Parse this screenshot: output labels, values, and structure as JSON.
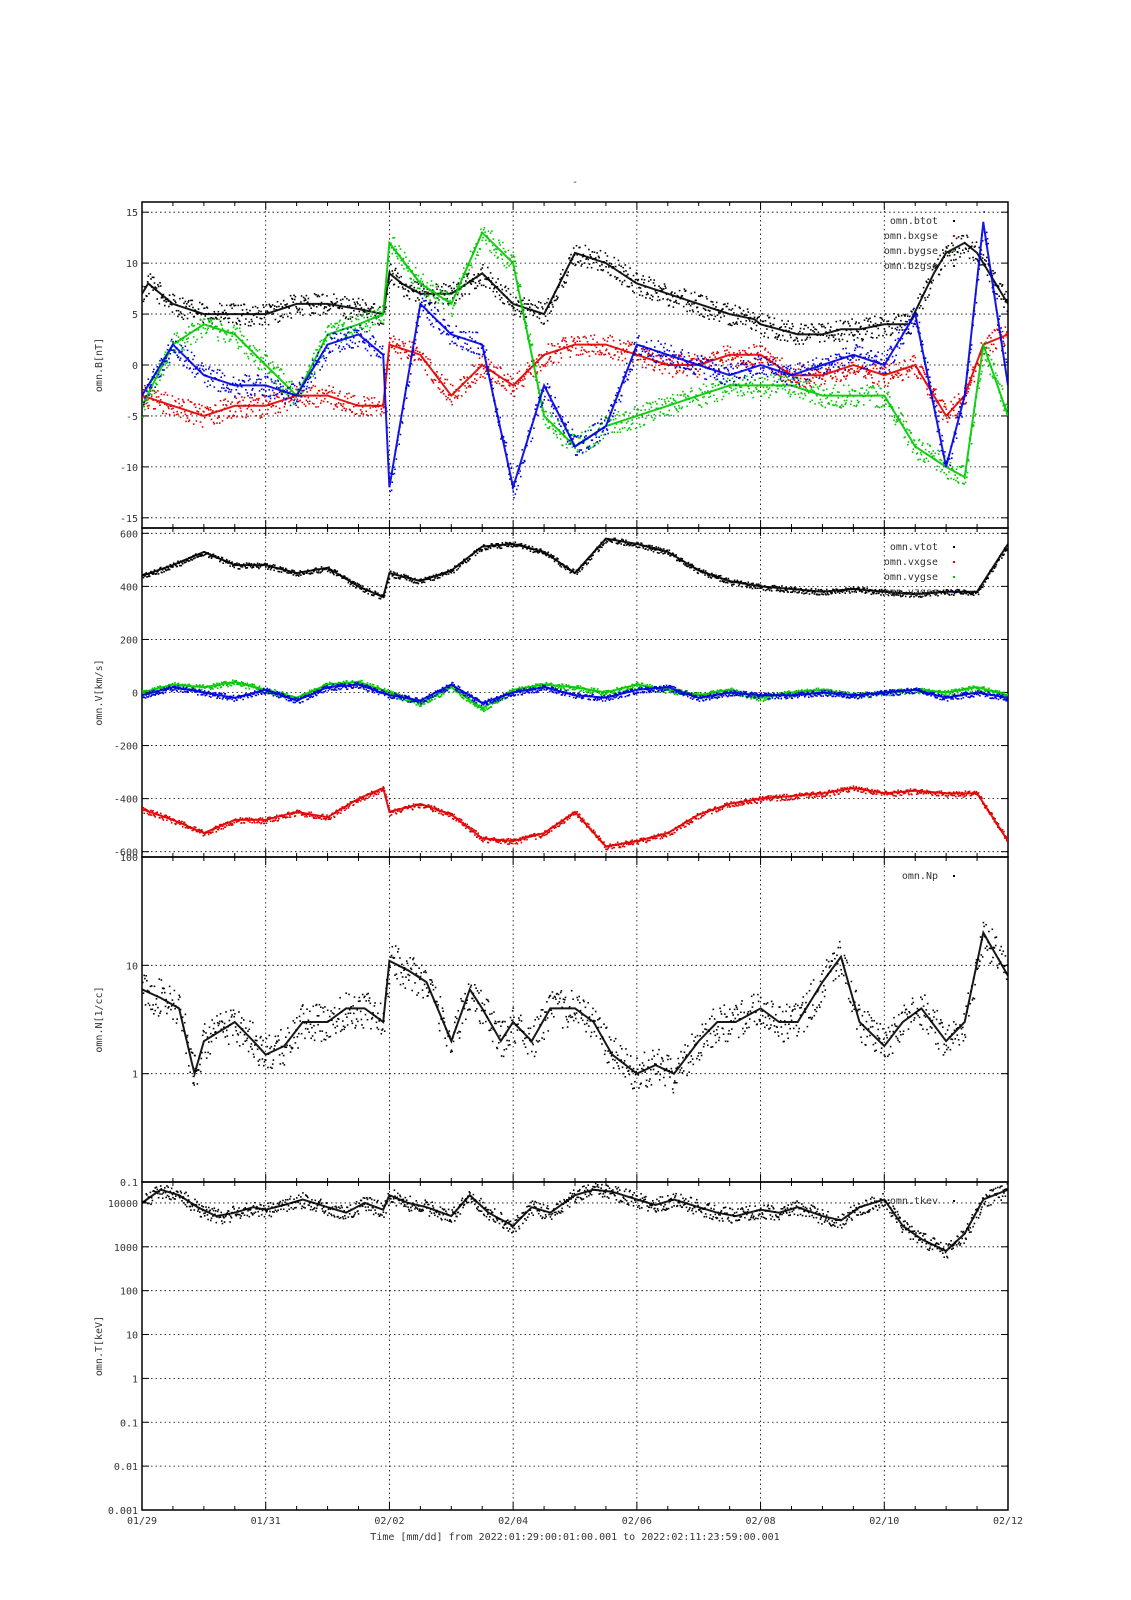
{
  "figure": {
    "title": "-",
    "xaxis_title": "Time [mm/dd]  from 2022:01:29:00:01:00.001  to  2022:02:11:23:59:00.001",
    "x_tick_labels": [
      "01/29",
      "01/31",
      "02/02",
      "02/04",
      "02/06",
      "02/08",
      "02/10",
      "02/12"
    ],
    "x_range_days": [
      0,
      14
    ]
  },
  "chart_data": [
    {
      "type": "scatter",
      "ylabel": "omn.B[nT]",
      "ylim": [
        -16,
        16
      ],
      "scale": "linear",
      "yticks": [
        15,
        10,
        5,
        0,
        -5,
        -10,
        -15
      ],
      "ytick_labels": [
        "15",
        "10",
        "5",
        "0",
        "-5",
        "-10",
        "-15"
      ],
      "legend_placement": "top-right",
      "series": [
        {
          "name": "omn.btot",
          "color": "#000000",
          "x": [
            0,
            0.1,
            0.5,
            1,
            1.5,
            2,
            2.5,
            3,
            3.5,
            3.9,
            4,
            4.2,
            4.5,
            5,
            5.5,
            6,
            6.5,
            7,
            7.5,
            8,
            8.5,
            9,
            9.5,
            9.9,
            10,
            10.3,
            10.6,
            11,
            11.3,
            11.6,
            12,
            12.4,
            12.8,
            13,
            13.3,
            13.5,
            13.8,
            14
          ],
          "y": [
            7,
            8,
            6,
            5,
            5,
            5,
            6,
            6,
            5.5,
            5,
            9,
            8,
            7,
            7,
            9,
            6,
            5,
            11,
            10,
            8,
            7,
            6,
            5,
            4.5,
            4,
            3.5,
            3,
            3,
            3.5,
            3.5,
            4,
            4,
            9,
            11,
            12,
            11,
            8,
            6
          ]
        },
        {
          "name": "omn.bxgse",
          "color": "#e00000",
          "x": [
            0,
            0.5,
            1,
            1.5,
            2,
            2.5,
            3,
            3.5,
            3.9,
            4,
            4.5,
            5,
            5.5,
            6,
            6.5,
            7,
            7.5,
            8,
            8.5,
            9,
            9.5,
            10,
            10.5,
            11,
            11.5,
            12,
            12.5,
            13,
            13.3,
            13.6,
            14
          ],
          "y": [
            -3,
            -4,
            -5,
            -4,
            -4,
            -3,
            -3,
            -4,
            -4,
            2,
            1,
            -3,
            0,
            -2,
            1,
            2,
            2,
            1,
            0,
            0,
            1,
            1,
            -1,
            -1,
            0,
            -1,
            0,
            -5,
            -3,
            2,
            3
          ]
        },
        {
          "name": "omn.bygse",
          "color": "#00c800",
          "x": [
            0,
            0.5,
            1,
            1.5,
            2,
            2.5,
            3,
            3.5,
            3.9,
            4,
            4.5,
            5,
            5.5,
            6,
            6.5,
            7,
            7.5,
            8,
            8.5,
            9,
            9.5,
            10,
            10.5,
            11,
            11.5,
            12,
            12.5,
            13,
            13.3,
            13.6,
            14
          ],
          "y": [
            -4,
            2,
            4,
            3,
            0,
            -3,
            3,
            4,
            5,
            12,
            8,
            6,
            13,
            10,
            -5,
            -8,
            -6,
            -5,
            -4,
            -3,
            -2,
            -2,
            -2,
            -3,
            -3,
            -3,
            -8,
            -10,
            -11,
            2,
            -5
          ]
        },
        {
          "name": "omn.bzgse",
          "color": "#0000e0",
          "x": [
            0,
            0.5,
            1,
            1.5,
            2,
            2.5,
            3,
            3.5,
            3.9,
            4,
            4.5,
            5,
            5.5,
            6,
            6.5,
            7,
            7.5,
            8,
            8.5,
            9,
            9.5,
            10,
            10.5,
            11,
            11.5,
            12,
            12.5,
            13,
            13.3,
            13.6,
            14
          ],
          "y": [
            -3,
            2,
            -1,
            -2,
            -2,
            -3,
            2,
            3,
            1,
            -12,
            6,
            3,
            2,
            -12,
            -2,
            -8,
            -6,
            2,
            1,
            0,
            -1,
            0,
            -1,
            0,
            1,
            0,
            5,
            -10,
            -3,
            14,
            -2
          ]
        }
      ]
    },
    {
      "type": "scatter",
      "ylabel": "omn.V[km/s]",
      "ylim": [
        -620,
        620
      ],
      "scale": "linear",
      "yticks": [
        600,
        400,
        200,
        0,
        -200,
        -400,
        -600
      ],
      "ytick_labels": [
        "600",
        "400",
        "200",
        "0",
        "-200",
        "-400",
        "-600"
      ],
      "legend_placement": "top-right",
      "series": [
        {
          "name": "omn.vtot",
          "color": "#000000",
          "x": [
            0,
            0.5,
            1,
            1.5,
            2,
            2.5,
            3,
            3.5,
            3.9,
            4,
            4.5,
            5,
            5.5,
            6,
            6.5,
            7,
            7.5,
            8,
            8.5,
            9,
            9.5,
            10,
            10.5,
            11,
            11.5,
            12,
            12.5,
            13,
            13.5,
            14
          ],
          "y": [
            440,
            480,
            530,
            480,
            480,
            450,
            470,
            400,
            360,
            450,
            420,
            460,
            550,
            560,
            530,
            450,
            580,
            560,
            530,
            460,
            420,
            400,
            390,
            380,
            390,
            380,
            370,
            380,
            380,
            560
          ]
        },
        {
          "name": "omn.vxgse",
          "color": "#e00000",
          "x": [
            0,
            0.5,
            1,
            1.5,
            2,
            2.5,
            3,
            3.5,
            3.9,
            4,
            4.5,
            5,
            5.5,
            6,
            6.5,
            7,
            7.5,
            8,
            8.5,
            9,
            9.5,
            10,
            10.5,
            11,
            11.5,
            12,
            12.5,
            13,
            13.5,
            14
          ],
          "y": [
            -440,
            -480,
            -530,
            -480,
            -480,
            -450,
            -470,
            -400,
            -360,
            -450,
            -420,
            -460,
            -550,
            -560,
            -530,
            -450,
            -580,
            -560,
            -530,
            -460,
            -420,
            -400,
            -390,
            -380,
            -360,
            -380,
            -370,
            -380,
            -380,
            -560
          ]
        },
        {
          "name": "omn.vygse",
          "color": "#00c800",
          "x": [
            0,
            0.5,
            1,
            1.5,
            2,
            2.5,
            3,
            3.5,
            4,
            4.5,
            5,
            5.5,
            6,
            6.5,
            7,
            7.5,
            8,
            8.5,
            9,
            9.5,
            10,
            10.5,
            11,
            11.5,
            12,
            12.5,
            13,
            13.5,
            14
          ],
          "y": [
            0,
            30,
            20,
            40,
            10,
            -20,
            30,
            40,
            0,
            -40,
            20,
            -60,
            10,
            30,
            20,
            0,
            30,
            10,
            -10,
            10,
            -20,
            0,
            10,
            -10,
            0,
            10,
            0,
            20,
            -10
          ]
        },
        {
          "name": "omn.vzgse",
          "color": "#0000e0",
          "x": [
            0,
            0.5,
            1,
            1.5,
            2,
            2.5,
            3,
            3.5,
            4,
            4.5,
            5,
            5.5,
            6,
            6.5,
            7,
            7.5,
            8,
            8.5,
            9,
            9.5,
            10,
            10.5,
            11,
            11.5,
            12,
            12.5,
            13,
            13.5,
            14
          ],
          "y": [
            -10,
            20,
            0,
            -20,
            10,
            -30,
            20,
            30,
            -10,
            -30,
            30,
            -40,
            0,
            20,
            -10,
            -20,
            10,
            20,
            -20,
            0,
            -10,
            -10,
            0,
            -10,
            0,
            10,
            -20,
            0,
            -20
          ]
        }
      ]
    },
    {
      "type": "scatter",
      "ylabel": "omn.N[1/cc]",
      "ylim": [
        0.1,
        100
      ],
      "scale": "log",
      "yticks": [
        100,
        10,
        1,
        0.1
      ],
      "ytick_labels": [
        "100",
        "10",
        "1",
        "0.1"
      ],
      "legend_placement": "top-right",
      "series": [
        {
          "name": "omn.Np",
          "color": "#000000",
          "x": [
            0,
            0.3,
            0.6,
            0.8,
            0.85,
            1,
            1.5,
            1.8,
            2,
            2.3,
            2.6,
            3,
            3.3,
            3.6,
            3.9,
            4,
            4.3,
            4.6,
            5,
            5.3,
            5.5,
            5.8,
            6,
            6.3,
            6.6,
            7,
            7.3,
            7.6,
            8,
            8.3,
            8.6,
            9,
            9.3,
            9.6,
            10,
            10.3,
            10.6,
            11,
            11.3,
            11.6,
            12,
            12.3,
            12.6,
            13,
            13.3,
            13.6,
            14
          ],
          "y": [
            6,
            5,
            4,
            1.3,
            1,
            2,
            3,
            2,
            1.5,
            1.8,
            3,
            3,
            4,
            4,
            3,
            11,
            9,
            7,
            2,
            6,
            4,
            2,
            3,
            2,
            4,
            4,
            3,
            1.5,
            1,
            1.2,
            1,
            2,
            3,
            3,
            4,
            3,
            3,
            7,
            12,
            3,
            1.8,
            3,
            4,
            2,
            3,
            20,
            8
          ]
        }
      ]
    },
    {
      "type": "scatter",
      "ylabel": "omn.T[keV]",
      "ylim": [
        0.001,
        30000
      ],
      "scale": "log",
      "yticks": [
        10000,
        1000,
        100,
        10,
        1,
        0.1,
        0.01,
        0.001
      ],
      "ytick_labels": [
        "10000",
        "1000",
        "100",
        "10",
        "1",
        "0.1",
        "0.01",
        "0.001"
      ],
      "legend_placement": "top-right",
      "series": [
        {
          "name": "omn.tkev",
          "color": "#000000",
          "x": [
            0,
            0.3,
            0.6,
            0.9,
            1.2,
            1.5,
            1.8,
            2,
            2.3,
            2.6,
            3,
            3.3,
            3.6,
            3.9,
            4,
            4.3,
            4.6,
            5,
            5.3,
            5.6,
            6,
            6.3,
            6.6,
            7,
            7.3,
            7.6,
            8,
            8.3,
            8.6,
            9,
            9.3,
            9.6,
            10,
            10.3,
            10.6,
            11,
            11.3,
            11.6,
            12,
            12.3,
            12.6,
            13,
            13.3,
            13.6,
            14
          ],
          "y": [
            10000,
            20000,
            15000,
            8000,
            5000,
            6000,
            8000,
            7000,
            9000,
            12000,
            8000,
            6000,
            10000,
            7000,
            15000,
            10000,
            8000,
            5000,
            15000,
            6000,
            3000,
            8000,
            6000,
            15000,
            20000,
            18000,
            12000,
            9000,
            12000,
            8000,
            6000,
            5000,
            7000,
            6000,
            8000,
            5000,
            4000,
            8000,
            12000,
            3000,
            1500,
            800,
            2000,
            12000,
            20000
          ]
        }
      ]
    }
  ]
}
